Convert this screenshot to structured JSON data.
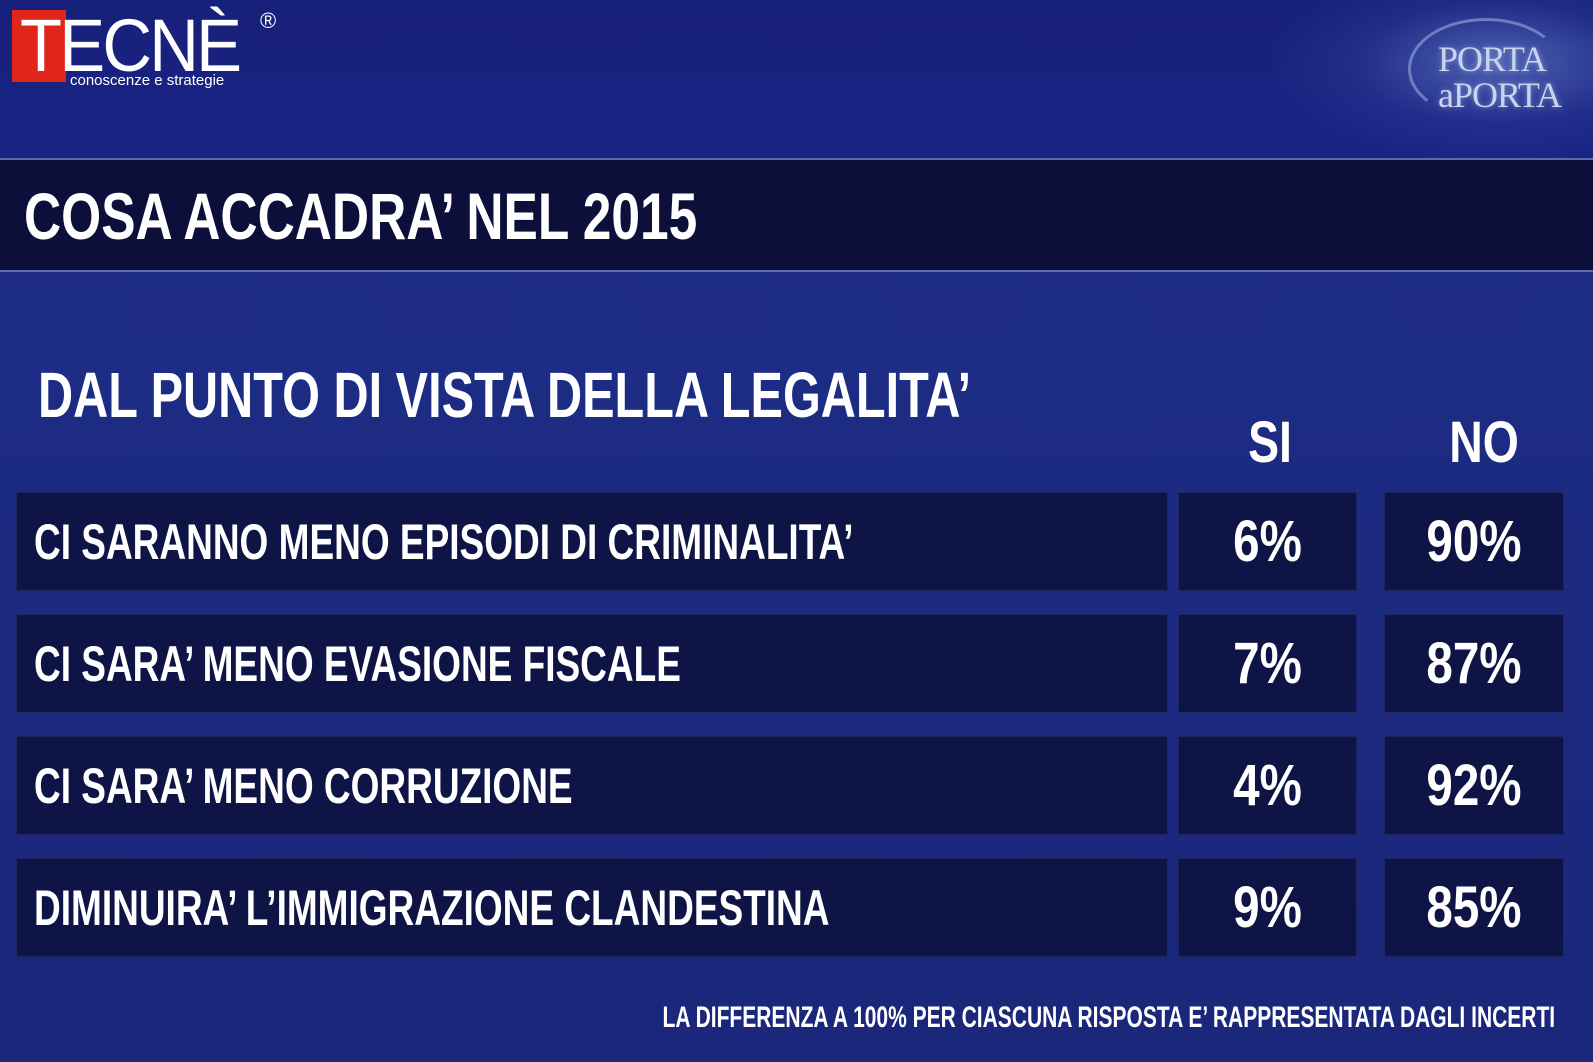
{
  "header": {
    "brand_left": {
      "name": "TECNÈ",
      "registered": "®",
      "tagline": "conoscenze e strategie"
    },
    "brand_right": {
      "line1": "PORTA",
      "line2": "aPORTA"
    }
  },
  "title": "COSA ACCADRA’ NEL 2015",
  "subtitle": "DAL PUNTO DI VISTA DELLA LEGALITA’",
  "footnote": "LA DIFFERENZA A 100% PER CIASCUNA RISPOSTA E’ RAPPRESENTATA DAGLI INCERTI",
  "colors": {
    "background": "#1c2a80",
    "cell": "#0e1445",
    "title_band": "#0b0f3a",
    "brand_red": "#e0261b"
  },
  "chart_data": {
    "type": "table",
    "title": "COSA ACCADRA’ NEL 2015",
    "subtitle": "DAL PUNTO DI VISTA DELLA LEGALITA’",
    "columns": [
      "SI",
      "NO"
    ],
    "rows": [
      {
        "label": "CI SARANNO MENO EPISODI DI CRIMINALITA’",
        "si": "6%",
        "no": "90%"
      },
      {
        "label": "CI SARA’ MENO EVASIONE FISCALE",
        "si": "7%",
        "no": "87%"
      },
      {
        "label": "CI SARA’ MENO CORRUZIONE",
        "si": "4%",
        "no": "92%"
      },
      {
        "label": "DIMINUIRA’ L’IMMIGRAZIONE CLANDESTINA",
        "si": "9%",
        "no": "85%"
      }
    ]
  }
}
